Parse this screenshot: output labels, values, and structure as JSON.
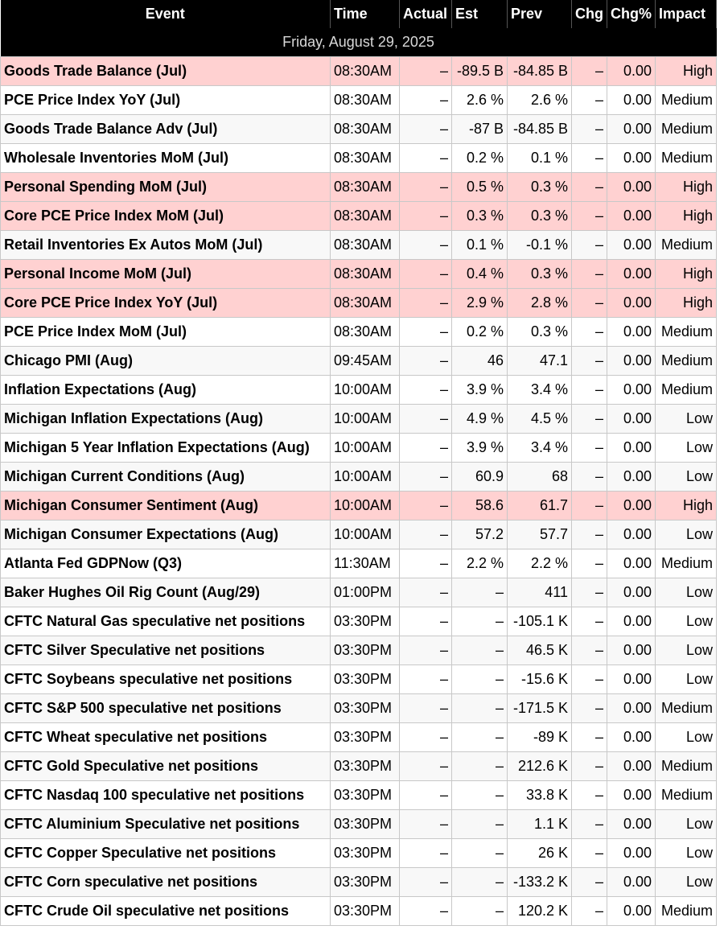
{
  "headers": {
    "event": "Event",
    "time": "Time",
    "actual": "Actual",
    "est": "Est",
    "prev": "Prev",
    "chg": "Chg",
    "chg_pct": "Chg%",
    "impact": "Impact"
  },
  "date_label": "Friday, August 29, 2025",
  "colors": {
    "header_bg": "#000000",
    "header_text": "#ffffff",
    "high_impact_row": "#ffd1d1",
    "border": "#c8c8c8"
  },
  "rows": [
    {
      "event": "Goods Trade Balance (Jul)",
      "time": "08:30AM",
      "actual": "–",
      "est": "-89.5 B",
      "prev": "-84.85 B",
      "chg": "–",
      "chg_pct": "0.00",
      "impact": "High"
    },
    {
      "event": "PCE Price Index YoY (Jul)",
      "time": "08:30AM",
      "actual": "–",
      "est": "2.6 %",
      "prev": "2.6 %",
      "chg": "–",
      "chg_pct": "0.00",
      "impact": "Medium"
    },
    {
      "event": "Goods Trade Balance Adv (Jul)",
      "time": "08:30AM",
      "actual": "–",
      "est": "-87 B",
      "prev": "-84.85 B",
      "chg": "–",
      "chg_pct": "0.00",
      "impact": "Medium"
    },
    {
      "event": "Wholesale Inventories MoM (Jul)",
      "time": "08:30AM",
      "actual": "–",
      "est": "0.2 %",
      "prev": "0.1 %",
      "chg": "–",
      "chg_pct": "0.00",
      "impact": "Medium"
    },
    {
      "event": "Personal Spending MoM (Jul)",
      "time": "08:30AM",
      "actual": "–",
      "est": "0.5 %",
      "prev": "0.3 %",
      "chg": "–",
      "chg_pct": "0.00",
      "impact": "High"
    },
    {
      "event": "Core PCE Price Index MoM (Jul)",
      "time": "08:30AM",
      "actual": "–",
      "est": "0.3 %",
      "prev": "0.3 %",
      "chg": "–",
      "chg_pct": "0.00",
      "impact": "High"
    },
    {
      "event": "Retail Inventories Ex Autos MoM (Jul)",
      "time": "08:30AM",
      "actual": "–",
      "est": "0.1 %",
      "prev": "-0.1 %",
      "chg": "–",
      "chg_pct": "0.00",
      "impact": "Medium"
    },
    {
      "event": "Personal Income MoM (Jul)",
      "time": "08:30AM",
      "actual": "–",
      "est": "0.4 %",
      "prev": "0.3 %",
      "chg": "–",
      "chg_pct": "0.00",
      "impact": "High"
    },
    {
      "event": "Core PCE Price Index YoY (Jul)",
      "time": "08:30AM",
      "actual": "–",
      "est": "2.9 %",
      "prev": "2.8 %",
      "chg": "–",
      "chg_pct": "0.00",
      "impact": "High"
    },
    {
      "event": "PCE Price Index MoM (Jul)",
      "time": "08:30AM",
      "actual": "–",
      "est": "0.2 %",
      "prev": "0.3 %",
      "chg": "–",
      "chg_pct": "0.00",
      "impact": "Medium"
    },
    {
      "event": "Chicago PMI (Aug)",
      "time": "09:45AM",
      "actual": "–",
      "est": "46",
      "prev": "47.1",
      "chg": "–",
      "chg_pct": "0.00",
      "impact": "Medium"
    },
    {
      "event": "Inflation Expectations (Aug)",
      "time": "10:00AM",
      "actual": "–",
      "est": "3.9 %",
      "prev": "3.4 %",
      "chg": "–",
      "chg_pct": "0.00",
      "impact": "Medium"
    },
    {
      "event": "Michigan Inflation Expectations (Aug)",
      "time": "10:00AM",
      "actual": "–",
      "est": "4.9 %",
      "prev": "4.5 %",
      "chg": "–",
      "chg_pct": "0.00",
      "impact": "Low"
    },
    {
      "event": "Michigan 5 Year Inflation Expectations (Aug)",
      "time": "10:00AM",
      "actual": "–",
      "est": "3.9 %",
      "prev": "3.4 %",
      "chg": "–",
      "chg_pct": "0.00",
      "impact": "Low"
    },
    {
      "event": "Michigan Current Conditions (Aug)",
      "time": "10:00AM",
      "actual": "–",
      "est": "60.9",
      "prev": "68",
      "chg": "–",
      "chg_pct": "0.00",
      "impact": "Low"
    },
    {
      "event": "Michigan Consumer Sentiment (Aug)",
      "time": "10:00AM",
      "actual": "–",
      "est": "58.6",
      "prev": "61.7",
      "chg": "–",
      "chg_pct": "0.00",
      "impact": "High"
    },
    {
      "event": "Michigan Consumer Expectations (Aug)",
      "time": "10:00AM",
      "actual": "–",
      "est": "57.2",
      "prev": "57.7",
      "chg": "–",
      "chg_pct": "0.00",
      "impact": "Low"
    },
    {
      "event": "Atlanta Fed GDPNow (Q3)",
      "time": "11:30AM",
      "actual": "–",
      "est": "2.2 %",
      "prev": "2.2 %",
      "chg": "–",
      "chg_pct": "0.00",
      "impact": "Medium"
    },
    {
      "event": "Baker Hughes Oil Rig Count (Aug/29)",
      "time": "01:00PM",
      "actual": "–",
      "est": "–",
      "prev": "411",
      "chg": "–",
      "chg_pct": "0.00",
      "impact": "Low"
    },
    {
      "event": "CFTC Natural Gas speculative net positions",
      "time": "03:30PM",
      "actual": "–",
      "est": "–",
      "prev": "-105.1 K",
      "chg": "–",
      "chg_pct": "0.00",
      "impact": "Low"
    },
    {
      "event": "CFTC Silver Speculative net positions",
      "time": "03:30PM",
      "actual": "–",
      "est": "–",
      "prev": "46.5 K",
      "chg": "–",
      "chg_pct": "0.00",
      "impact": "Low"
    },
    {
      "event": "CFTC Soybeans speculative net positions",
      "time": "03:30PM",
      "actual": "–",
      "est": "–",
      "prev": "-15.6 K",
      "chg": "–",
      "chg_pct": "0.00",
      "impact": "Low"
    },
    {
      "event": "CFTC S&P 500 speculative net positions",
      "time": "03:30PM",
      "actual": "–",
      "est": "–",
      "prev": "-171.5 K",
      "chg": "–",
      "chg_pct": "0.00",
      "impact": "Medium"
    },
    {
      "event": "CFTC Wheat speculative net positions",
      "time": "03:30PM",
      "actual": "–",
      "est": "–",
      "prev": "-89 K",
      "chg": "–",
      "chg_pct": "0.00",
      "impact": "Low"
    },
    {
      "event": "CFTC Gold Speculative net positions",
      "time": "03:30PM",
      "actual": "–",
      "est": "–",
      "prev": "212.6 K",
      "chg": "–",
      "chg_pct": "0.00",
      "impact": "Medium"
    },
    {
      "event": "CFTC Nasdaq 100 speculative net positions",
      "time": "03:30PM",
      "actual": "–",
      "est": "–",
      "prev": "33.8 K",
      "chg": "–",
      "chg_pct": "0.00",
      "impact": "Medium"
    },
    {
      "event": "CFTC Aluminium Speculative net positions",
      "time": "03:30PM",
      "actual": "–",
      "est": "–",
      "prev": "1.1 K",
      "chg": "–",
      "chg_pct": "0.00",
      "impact": "Low"
    },
    {
      "event": "CFTC Copper Speculative net positions",
      "time": "03:30PM",
      "actual": "–",
      "est": "–",
      "prev": "26 K",
      "chg": "–",
      "chg_pct": "0.00",
      "impact": "Low"
    },
    {
      "event": "CFTC Corn speculative net positions",
      "time": "03:30PM",
      "actual": "–",
      "est": "–",
      "prev": "-133.2 K",
      "chg": "–",
      "chg_pct": "0.00",
      "impact": "Low"
    },
    {
      "event": "CFTC Crude Oil speculative net positions",
      "time": "03:30PM",
      "actual": "–",
      "est": "–",
      "prev": "120.2 K",
      "chg": "–",
      "chg_pct": "0.00",
      "impact": "Medium"
    }
  ]
}
